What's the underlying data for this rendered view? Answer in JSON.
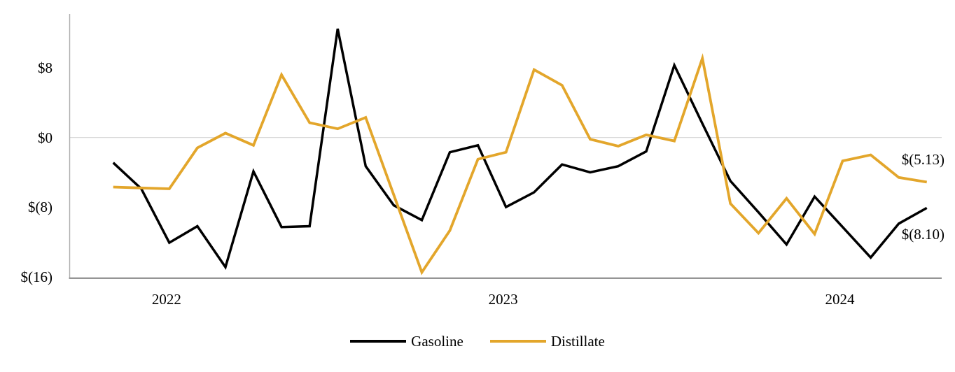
{
  "chart_data": {
    "type": "line",
    "title": "",
    "x_axis": {
      "ticks": [
        {
          "label": "2022",
          "index": 2
        },
        {
          "label": "2023",
          "index": 14
        },
        {
          "label": "2024",
          "index": 26
        }
      ]
    },
    "y_axis": {
      "ticks": [
        {
          "label": "$8",
          "value": 8
        },
        {
          "label": "$0",
          "value": 0
        },
        {
          "label": "$(8)",
          "value": -8
        },
        {
          "label": "$(16)",
          "value": -16
        }
      ],
      "ylim": [
        -16.2,
        14.2
      ]
    },
    "grid": "zero-line-only",
    "legend_position": "bottom-center",
    "series": [
      {
        "name": "Gasoline",
        "color": "#000000",
        "end_label": "$(8.10)",
        "values": [
          -2.9,
          -5.9,
          -12.1,
          -10.2,
          -14.9,
          -3.9,
          -10.3,
          -10.2,
          12.5,
          -3.3,
          -7.8,
          -9.5,
          -1.7,
          -0.9,
          -8.0,
          -6.3,
          -3.1,
          -4.0,
          -3.3,
          -1.6,
          8.3,
          1.6,
          -5.0,
          -8.6,
          -12.3,
          -6.8,
          -10.3,
          -13.8,
          -9.9,
          -8.1
        ]
      },
      {
        "name": "Distillate",
        "color": "#E3A62B",
        "end_label": "$(5.13)",
        "values": [
          -5.7,
          -5.8,
          -5.9,
          -1.2,
          0.5,
          -0.9,
          7.2,
          1.7,
          1.0,
          2.3,
          -6.6,
          -15.5,
          -10.7,
          -2.5,
          -1.7,
          7.8,
          6.0,
          -0.2,
          -1.0,
          0.3,
          -0.4,
          9.1,
          -7.6,
          -11.0,
          -7.0,
          -11.1,
          -2.7,
          -2.0,
          -4.6,
          -5.13
        ]
      }
    ],
    "colors": {
      "zero_gridline": "#D9D9D9",
      "y_axis_line": "#ACACAC",
      "x_axis_line": "#8A8A8A",
      "background": "#FFFFFF"
    }
  }
}
